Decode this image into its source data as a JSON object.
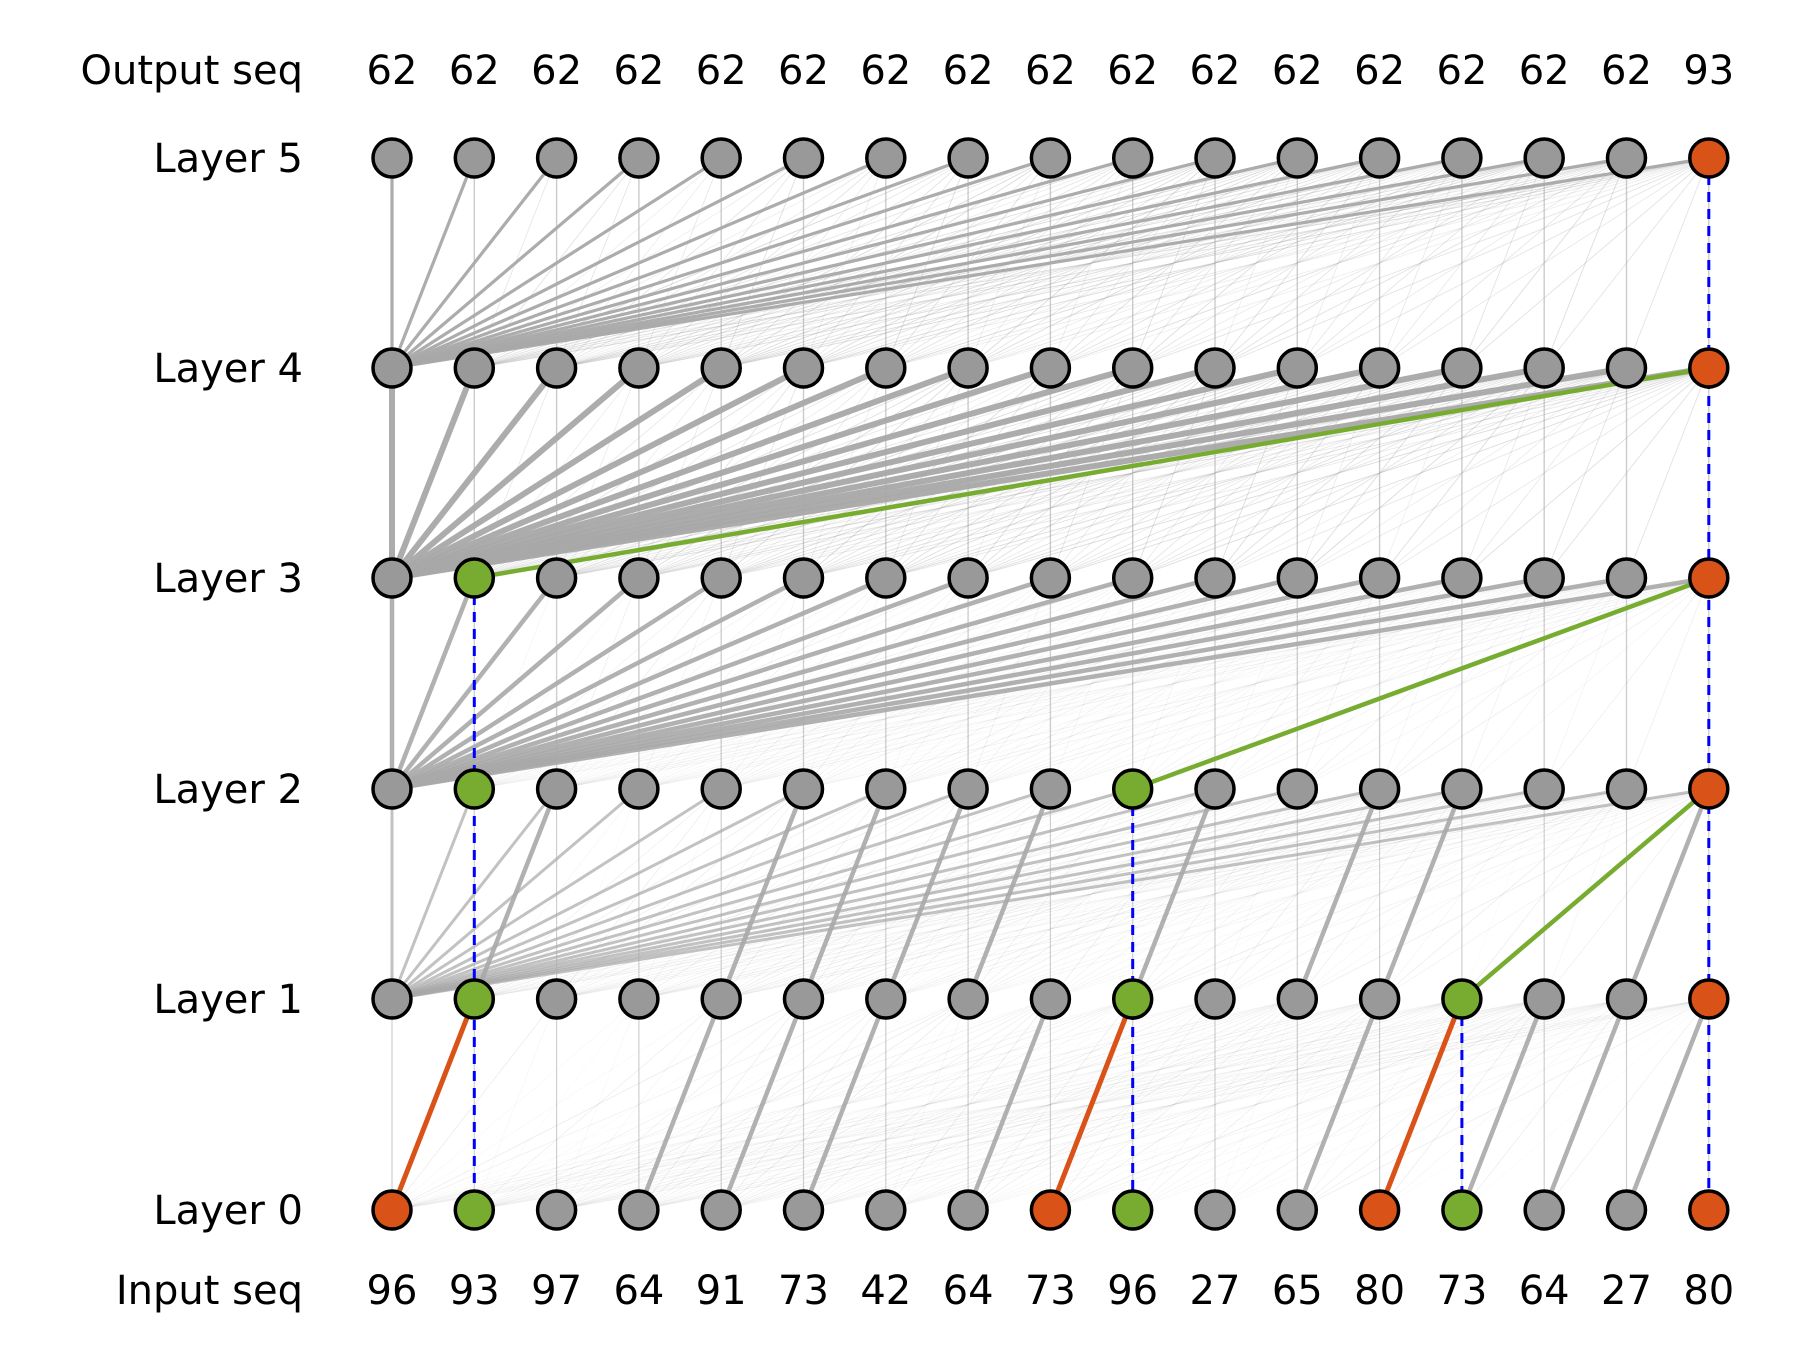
{
  "row_labels": {
    "output": "Output seq",
    "layers": [
      "Layer 5",
      "Layer 4",
      "Layer 3",
      "Layer 2",
      "Layer 1",
      "Layer 0"
    ],
    "input": "Input seq"
  },
  "output_seq": [
    "62",
    "62",
    "62",
    "62",
    "62",
    "62",
    "62",
    "62",
    "62",
    "62",
    "62",
    "62",
    "62",
    "62",
    "62",
    "62",
    "93"
  ],
  "input_seq": [
    "96",
    "93",
    "97",
    "64",
    "91",
    "73",
    "42",
    "64",
    "73",
    "96",
    "27",
    "65",
    "80",
    "73",
    "64",
    "27",
    "80"
  ],
  "colors": {
    "node_default": "#999999",
    "node_orange": "#d95319",
    "node_green": "#77ac30",
    "edge_gray": "#a8a8a8",
    "highlight_dash": "#0000ff",
    "node_stroke": "#000000"
  },
  "node_colors": {
    "layer5": [
      "g",
      "g",
      "g",
      "g",
      "g",
      "g",
      "g",
      "g",
      "g",
      "g",
      "g",
      "g",
      "g",
      "g",
      "g",
      "g",
      "o"
    ],
    "layer4": [
      "g",
      "g",
      "g",
      "g",
      "g",
      "g",
      "g",
      "g",
      "g",
      "g",
      "g",
      "g",
      "g",
      "g",
      "g",
      "g",
      "o"
    ],
    "layer3": [
      "g",
      "G",
      "g",
      "g",
      "g",
      "g",
      "g",
      "g",
      "g",
      "g",
      "g",
      "g",
      "g",
      "g",
      "g",
      "g",
      "o"
    ],
    "layer2": [
      "g",
      "G",
      "g",
      "g",
      "g",
      "g",
      "g",
      "g",
      "g",
      "G",
      "g",
      "g",
      "g",
      "g",
      "g",
      "g",
      "o"
    ],
    "layer1": [
      "g",
      "G",
      "g",
      "g",
      "g",
      "g",
      "g",
      "g",
      "g",
      "G",
      "g",
      "g",
      "g",
      "G",
      "g",
      "g",
      "o"
    ],
    "layer0": [
      "o",
      "G",
      "g",
      "g",
      "g",
      "g",
      "g",
      "g",
      "o",
      "G",
      "g",
      "g",
      "o",
      "G",
      "g",
      "g",
      "o"
    ]
  },
  "highlight_edges": {
    "green": [
      {
        "upper_layer": 4,
        "upper_pos": 16,
        "lower_layer": 3,
        "lower_pos": 1
      },
      {
        "upper_layer": 3,
        "upper_pos": 16,
        "lower_layer": 2,
        "lower_pos": 9
      },
      {
        "upper_layer": 2,
        "upper_pos": 16,
        "lower_layer": 1,
        "lower_pos": 13
      }
    ],
    "orange": [
      {
        "upper_layer": 1,
        "upper_pos": 1,
        "lower_layer": 0,
        "lower_pos": 0
      },
      {
        "upper_layer": 1,
        "upper_pos": 9,
        "lower_layer": 0,
        "lower_pos": 8
      },
      {
        "upper_layer": 1,
        "upper_pos": 13,
        "lower_layer": 0,
        "lower_pos": 12
      }
    ],
    "blue_dashed": [
      {
        "pos": 16,
        "from_layer": 5,
        "to_layer": 0
      },
      {
        "pos": 1,
        "from_layer": 3,
        "to_layer": 0
      },
      {
        "pos": 9,
        "from_layer": 2,
        "to_layer": 0
      },
      {
        "pos": 13,
        "from_layer": 1,
        "to_layer": 0
      }
    ]
  }
}
